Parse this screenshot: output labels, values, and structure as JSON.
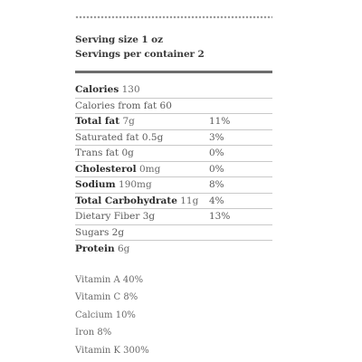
{
  "serving": {
    "size": "Serving size 1 oz",
    "per_container": "Servings per container 2"
  },
  "nutrients": [
    {
      "name": "Calories",
      "amount": "130",
      "dv": ""
    },
    {
      "name": "Calories from fat 60",
      "amount": "",
      "dv": ""
    },
    {
      "name": "Total fat",
      "amount": "7g",
      "dv": "11%"
    },
    {
      "name": "Saturated fat 0.5g",
      "amount": "",
      "dv": "3%"
    },
    {
      "name": "Trans fat 0g",
      "amount": "",
      "dv": "0%"
    },
    {
      "name": "Cholesterol",
      "amount": "0mg",
      "dv": "0%"
    },
    {
      "name": "Sodium",
      "amount": "190mg",
      "dv": "8%"
    },
    {
      "name": "Total Carbohydrate",
      "amount": "11g",
      "dv": "4%"
    },
    {
      "name": "Dietary Fiber 3g",
      "amount": "",
      "dv": "13%"
    },
    {
      "name": "Sugars 2g",
      "amount": "",
      "dv": ""
    },
    {
      "name": "Protein",
      "amount": "6g",
      "dv": ""
    }
  ],
  "vitamins": [
    "Vitamin A 40%",
    "Vitamin C 8%",
    "Calcium 10%",
    "Iron 8%",
    "Vitamin K 300%"
  ]
}
